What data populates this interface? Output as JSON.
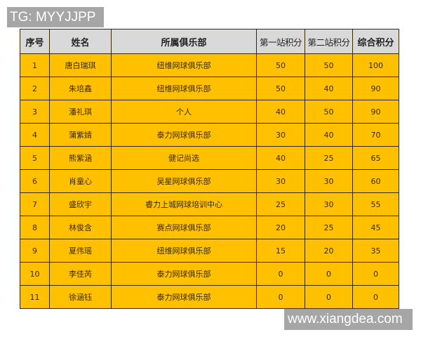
{
  "watermarks": {
    "top": "TG: MYYJJPP",
    "bottom": "www.xiangdea.com"
  },
  "table": {
    "headers": [
      "序号",
      "姓名",
      "所属俱乐部",
      "第一站积分",
      "第二站积分",
      "综合积分"
    ],
    "rows": [
      [
        "1",
        "唐白瑞琪",
        "纽维网球俱乐部",
        "50",
        "50",
        "100"
      ],
      [
        "2",
        "朱培鑫",
        "纽维网球俱乐部",
        "50",
        "40",
        "90"
      ],
      [
        "3",
        "潘礼琪",
        "个人",
        "40",
        "50",
        "90"
      ],
      [
        "4",
        "蒲紫婧",
        "泰力网球俱乐部",
        "30",
        "40",
        "70"
      ],
      [
        "5",
        "熊紫涵",
        "健记尚选",
        "40",
        "25",
        "65"
      ],
      [
        "6",
        "肖童心",
        "吴星网球俱乐部",
        "30",
        "30",
        "60"
      ],
      [
        "7",
        "盛欣宇",
        "睿力上城网球培训中心",
        "25",
        "30",
        "55"
      ],
      [
        "8",
        "林俊含",
        "赛点网球俱乐部",
        "20",
        "25",
        "45"
      ],
      [
        "9",
        "夏伟瑶",
        "纽维网球俱乐部",
        "15",
        "20",
        "35"
      ],
      [
        "10",
        "李佳芮",
        "泰力网球俱乐部",
        "0",
        "0",
        "0"
      ],
      [
        "11",
        "徐涵钰",
        "泰力网球俱乐部",
        "0",
        "0",
        "0"
      ]
    ]
  },
  "colors": {
    "header_bg": "#d9d9d9",
    "row_bg": "#ffc000",
    "watermark_bg": "#a6a6a6"
  }
}
